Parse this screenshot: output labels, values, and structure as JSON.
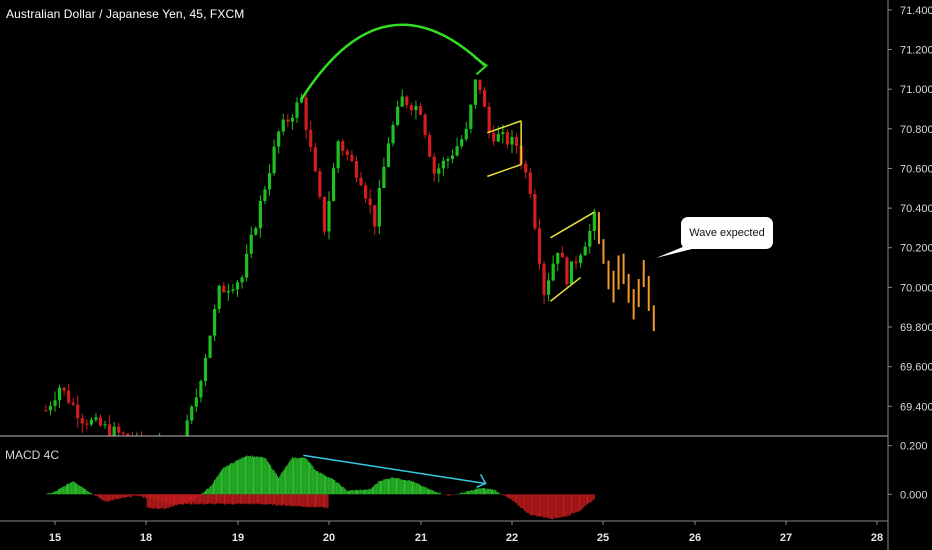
{
  "header": {
    "title": "Australian Dollar / Japanese Yen, 45, FXCM"
  },
  "indicator": {
    "label": "MACD 4C"
  },
  "annotation": {
    "text": "Wave expected"
  },
  "colors": {
    "up": "#1fbf1f",
    "down": "#d21e1e",
    "projection": "#f2992e",
    "arc": "#33dd22",
    "channel": "#e8e03a",
    "divergence": "#35c8e0",
    "macd_up": "#2cc52c",
    "macd_down": "#c01c1c"
  },
  "chart_data": [
    {
      "type": "candlestick",
      "ylim": [
        69.25,
        71.45
      ],
      "y_ticks": [
        "71.400",
        "71.200",
        "71.000",
        "70.800",
        "70.600",
        "70.400",
        "70.200",
        "70.000",
        "69.800",
        "69.600",
        "69.400"
      ],
      "x_ticks": [
        "15",
        "18",
        "19",
        "20",
        "21",
        "22",
        "25",
        "26",
        "27",
        "28"
      ],
      "price_path": [
        [
          14.9,
          69.38
        ],
        [
          15.05,
          69.5
        ],
        [
          15.3,
          69.34
        ],
        [
          16.0,
          69.2
        ],
        [
          18.25,
          69.0
        ],
        [
          18.55,
          69.45
        ],
        [
          18.8,
          69.98
        ],
        [
          19.05,
          70.05
        ],
        [
          19.25,
          70.42
        ],
        [
          19.45,
          70.78
        ],
        [
          19.7,
          70.95
        ],
        [
          19.95,
          70.3
        ],
        [
          20.1,
          70.74
        ],
        [
          20.35,
          70.55
        ],
        [
          20.5,
          70.33
        ],
        [
          20.65,
          70.74
        ],
        [
          20.8,
          70.95
        ],
        [
          21.0,
          70.9
        ],
        [
          21.15,
          70.58
        ],
        [
          21.3,
          70.65
        ],
        [
          21.5,
          70.78
        ],
        [
          21.62,
          71.08
        ],
        [
          21.75,
          70.78
        ],
        [
          22.05,
          70.72
        ],
        [
          22.2,
          70.5
        ],
        [
          22.35,
          69.98
        ],
        [
          22.5,
          70.2
        ],
        [
          22.6,
          70.05
        ],
        [
          22.85,
          70.28
        ],
        [
          22.9,
          70.35
        ]
      ],
      "projection_path": [
        [
          22.95,
          70.3
        ],
        [
          23.1,
          69.98
        ],
        [
          23.2,
          70.12
        ],
        [
          23.35,
          69.9
        ],
        [
          23.45,
          70.08
        ],
        [
          23.6,
          69.75
        ]
      ],
      "drawings": {
        "arc": [
          [
            19.7,
            70.95
          ],
          [
            20.6,
            71.3
          ],
          [
            21.7,
            71.12
          ]
        ],
        "flag_channel": [
          [
            21.73,
            70.78
          ],
          [
            22.1,
            70.84
          ],
          [
            22.1,
            70.62
          ],
          [
            21.73,
            70.56
          ]
        ],
        "wedge_channel": [
          [
            22.42,
            70.25
          ],
          [
            22.9,
            70.38
          ],
          [
            22.42,
            69.93
          ],
          [
            22.75,
            70.05
          ]
        ]
      }
    },
    {
      "type": "bar",
      "name": "MACD 4C",
      "ylim": [
        -0.11,
        0.24
      ],
      "y_ticks": [
        "0.200",
        "0.000"
      ],
      "path": [
        [
          14.9,
          0.0
        ],
        [
          15.0,
          0.01
        ],
        [
          15.2,
          0.055
        ],
        [
          15.4,
          0.005
        ],
        [
          15.55,
          -0.03
        ],
        [
          15.9,
          -0.005
        ],
        [
          16.3,
          -0.04
        ],
        [
          17.25,
          -0.04
        ],
        [
          18.2,
          -0.06
        ],
        [
          18.55,
          -0.02
        ],
        [
          18.6,
          0.0
        ],
        [
          18.7,
          0.03
        ],
        [
          18.85,
          0.11
        ],
        [
          19.1,
          0.16
        ],
        [
          19.3,
          0.15
        ],
        [
          19.45,
          0.07
        ],
        [
          19.6,
          0.15
        ],
        [
          19.75,
          0.15
        ],
        [
          19.85,
          0.1
        ],
        [
          20.05,
          0.06
        ],
        [
          20.2,
          0.015
        ],
        [
          20.45,
          0.02
        ],
        [
          20.55,
          0.055
        ],
        [
          20.7,
          0.07
        ],
        [
          20.9,
          0.055
        ],
        [
          21.1,
          0.02
        ],
        [
          21.3,
          -0.005
        ],
        [
          21.45,
          0.005
        ],
        [
          21.65,
          0.025
        ],
        [
          21.8,
          0.02
        ],
        [
          22.0,
          -0.025
        ],
        [
          22.2,
          -0.085
        ],
        [
          22.45,
          -0.1
        ],
        [
          22.6,
          -0.09
        ],
        [
          22.75,
          -0.065
        ],
        [
          22.9,
          -0.02
        ]
      ],
      "divergence_line": [
        [
          19.72,
          0.16
        ],
        [
          21.7,
          0.045
        ]
      ]
    }
  ]
}
